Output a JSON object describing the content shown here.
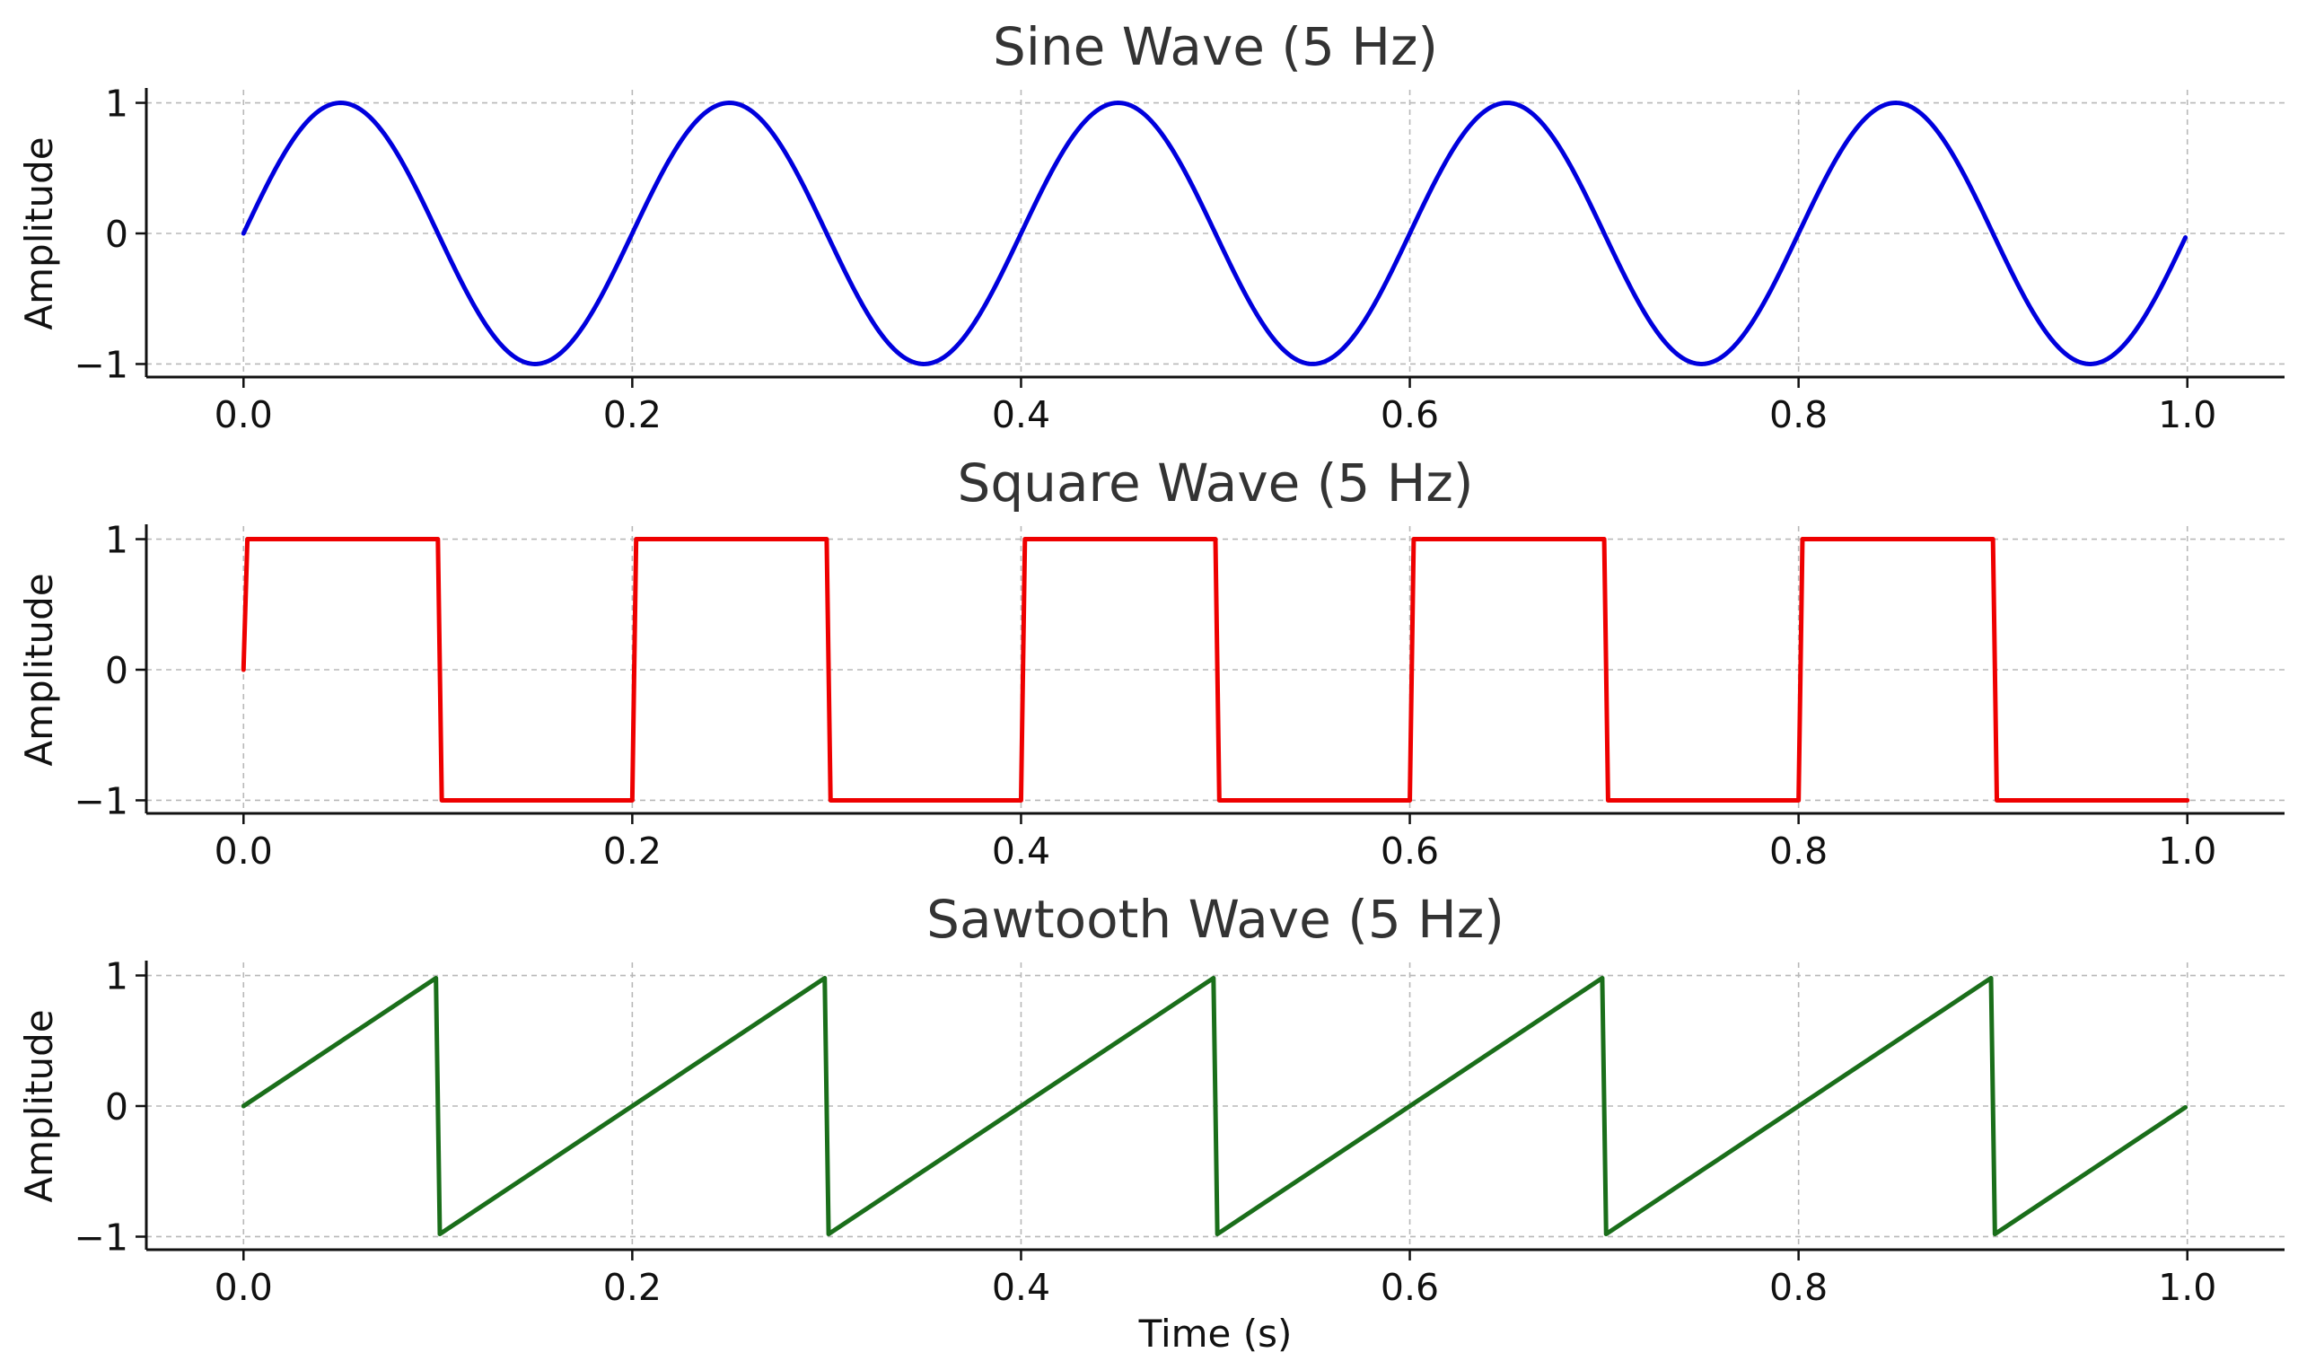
{
  "chart_data": [
    {
      "type": "line",
      "title": "Sine Wave (5 Hz)",
      "xlabel": "",
      "ylabel": "Amplitude",
      "xlim": [
        -0.05,
        1.05
      ],
      "ylim": [
        -1.1,
        1.1
      ],
      "xticks": [
        0.0,
        0.2,
        0.4,
        0.6,
        0.8,
        1.0
      ],
      "xtick_labels": [
        "0.0",
        "0.2",
        "0.4",
        "0.6",
        "0.8",
        "1.0"
      ],
      "yticks": [
        -1,
        0,
        1
      ],
      "ytick_labels": [
        "−1",
        "0",
        "1"
      ],
      "grid": true,
      "series": [
        {
          "color": "#0000dd",
          "x": [
            0.0,
            0.025,
            0.05,
            0.075,
            0.1,
            0.125,
            0.15,
            0.175,
            0.2,
            0.225,
            0.25,
            0.275,
            0.3,
            0.325,
            0.35,
            0.375,
            0.4,
            0.425,
            0.45,
            0.475,
            0.5,
            0.525,
            0.55,
            0.575,
            0.6,
            0.625,
            0.65,
            0.675,
            0.7,
            0.725,
            0.75,
            0.775,
            0.8,
            0.825,
            0.85,
            0.875,
            0.9,
            0.925,
            0.95,
            0.975,
            0.999
          ],
          "y": [
            0,
            0.71,
            1,
            0.71,
            0,
            -0.71,
            -1,
            -0.71,
            0,
            0.71,
            1,
            0.71,
            0,
            -0.71,
            -1,
            -0.71,
            0,
            0.71,
            1,
            0.71,
            0,
            -0.71,
            -1,
            -0.71,
            0,
            0.71,
            1,
            0.71,
            0,
            -0.71,
            -1,
            -0.71,
            0,
            0.71,
            1,
            0.71,
            0,
            -0.71,
            -1,
            -0.71,
            -0.03
          ]
        }
      ]
    },
    {
      "type": "line",
      "title": "Square Wave (5 Hz)",
      "xlabel": "",
      "ylabel": "Amplitude",
      "xlim": [
        -0.05,
        1.05
      ],
      "ylim": [
        -1.1,
        1.1
      ],
      "xticks": [
        0.0,
        0.2,
        0.4,
        0.6,
        0.8,
        1.0
      ],
      "xtick_labels": [
        "0.0",
        "0.2",
        "0.4",
        "0.6",
        "0.8",
        "1.0"
      ],
      "yticks": [
        -1,
        0,
        1
      ],
      "ytick_labels": [
        "−1",
        "0",
        "1"
      ],
      "grid": true,
      "series": [
        {
          "color": "#ee0000",
          "x": [
            0.0,
            0.002,
            0.1,
            0.102,
            0.2,
            0.202,
            0.3,
            0.302,
            0.4,
            0.402,
            0.5,
            0.502,
            0.6,
            0.602,
            0.7,
            0.702,
            0.8,
            0.802,
            0.9,
            0.902,
            1.0
          ],
          "y": [
            0,
            1,
            1,
            -1,
            -1,
            1,
            1,
            -1,
            -1,
            1,
            1,
            -1,
            -1,
            1,
            1,
            -1,
            -1,
            1,
            1,
            -1,
            -1
          ]
        }
      ]
    },
    {
      "type": "line",
      "title": "Sawtooth Wave (5 Hz)",
      "xlabel": "Time (s)",
      "ylabel": "Amplitude",
      "xlim": [
        -0.05,
        1.05
      ],
      "ylim": [
        -1.1,
        1.1
      ],
      "xticks": [
        0.0,
        0.2,
        0.4,
        0.6,
        0.8,
        1.0
      ],
      "xtick_labels": [
        "0.0",
        "0.2",
        "0.4",
        "0.6",
        "0.8",
        "1.0"
      ],
      "yticks": [
        -1,
        0,
        1
      ],
      "ytick_labels": [
        "−1",
        "0",
        "1"
      ],
      "grid": true,
      "series": [
        {
          "color": "#1a6e1a",
          "x": [
            0.0,
            0.099,
            0.101,
            0.299,
            0.301,
            0.499,
            0.501,
            0.699,
            0.701,
            0.899,
            0.901,
            0.999
          ],
          "y": [
            0,
            0.98,
            -0.98,
            0.98,
            -0.98,
            0.98,
            -0.98,
            0.98,
            -0.98,
            0.98,
            -0.98,
            -0.01
          ]
        }
      ]
    }
  ]
}
